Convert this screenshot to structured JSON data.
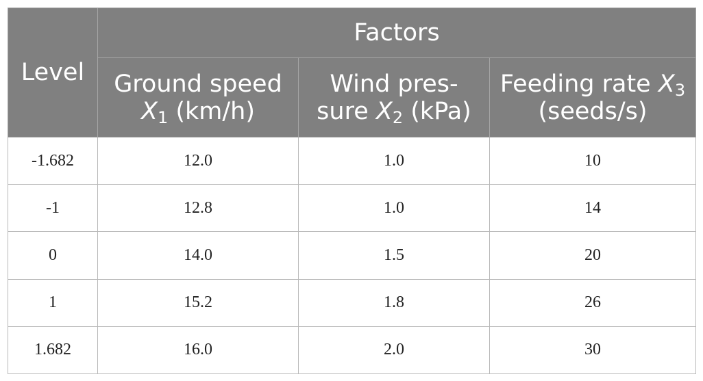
{
  "table": {
    "level_header": "Level",
    "factors_header": "Factors",
    "columns": [
      {
        "label_before": "Ground speed",
        "var": "X",
        "sub": "1",
        "label_after": " (km/h)"
      },
      {
        "label_before": "Wind pres-",
        "line2_before": "sure ",
        "var": "X",
        "sub": "2",
        "label_after": " (kPa)"
      },
      {
        "label_before": "Feeding rate ",
        "var": "X",
        "sub": "3",
        "label_after": "(seeds/s)"
      }
    ],
    "rows": [
      {
        "level": "-1.682",
        "ground_speed": "12.0",
        "wind_pressure": "1.0",
        "feeding_rate": "10"
      },
      {
        "level": "-1",
        "ground_speed": "12.8",
        "wind_pressure": "1.0",
        "feeding_rate": "14"
      },
      {
        "level": "0",
        "ground_speed": "14.0",
        "wind_pressure": "1.5",
        "feeding_rate": "20"
      },
      {
        "level": "1",
        "ground_speed": "15.2",
        "wind_pressure": "1.8",
        "feeding_rate": "26"
      },
      {
        "level": "1.682",
        "ground_speed": "16.0",
        "wind_pressure": "2.0",
        "feeding_rate": "30"
      }
    ]
  }
}
